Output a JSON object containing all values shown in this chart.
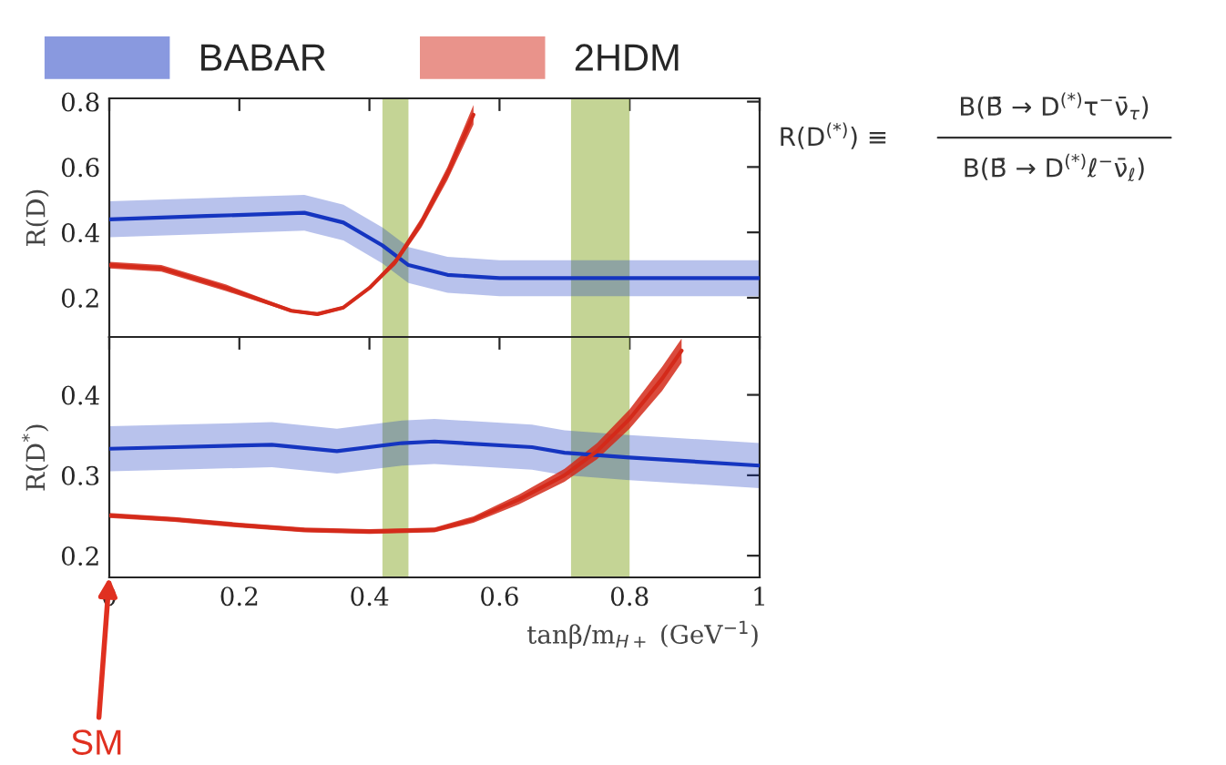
{
  "chart_data": [
    {
      "type": "line",
      "ylabel": "R(D)",
      "xlim": [
        0,
        1
      ],
      "xticks": [
        0,
        0.2,
        0.4,
        0.6,
        0.8,
        1
      ],
      "ylim": [
        0.08,
        0.81
      ],
      "yticks": [
        0.2,
        0.4,
        0.6,
        0.8
      ],
      "tick_labels": "y",
      "legend": "top",
      "grid": false,
      "bands": [
        {
          "axis": "x",
          "from": 0.42,
          "to": 0.46,
          "color": "#b5c97a"
        },
        {
          "axis": "x",
          "from": 0.71,
          "to": 0.8,
          "color": "#b5c97a"
        }
      ],
      "series": [
        {
          "name": "BABAR",
          "color": "#1535c0",
          "x": [
            0,
            0.15,
            0.3,
            0.36,
            0.42,
            0.46,
            0.52,
            0.6,
            0.8,
            1
          ],
          "values": [
            0.44,
            0.45,
            0.46,
            0.43,
            0.36,
            0.3,
            0.27,
            0.26,
            0.26,
            0.26
          ],
          "lower": [
            0.385,
            0.395,
            0.405,
            0.375,
            0.305,
            0.245,
            0.215,
            0.205,
            0.205,
            0.205
          ],
          "upper": [
            0.495,
            0.505,
            0.515,
            0.485,
            0.415,
            0.355,
            0.325,
            0.315,
            0.315,
            0.315
          ]
        },
        {
          "name": "2HDM",
          "color": "#d42a1a",
          "x": [
            0,
            0.08,
            0.18,
            0.28,
            0.32,
            0.36,
            0.4,
            0.44,
            0.48,
            0.52,
            0.56
          ],
          "values": [
            0.3,
            0.29,
            0.23,
            0.16,
            0.15,
            0.17,
            0.23,
            0.31,
            0.43,
            0.58,
            0.76
          ],
          "lower": [
            0.29,
            0.28,
            0.22,
            0.155,
            0.145,
            0.165,
            0.225,
            0.3,
            0.415,
            0.56,
            0.73
          ],
          "upper": [
            0.31,
            0.3,
            0.24,
            0.165,
            0.155,
            0.175,
            0.235,
            0.32,
            0.445,
            0.6,
            0.79
          ]
        }
      ],
      "annotations": [
        "R(D$^{(*)}$) ≡",
        "B(B̄ → D$^{(*)}$τ$^{−}$ν̄$_{τ}$)",
        "B(B̄ → D$^{(*)}$ℓ$^{−}$ν̄$_{ℓ}$)"
      ]
    },
    {
      "type": "line",
      "ylabel": "R(D$^{*}$)",
      "xlabel": "tanβ/m$_{H+}$ (GeV$^{−1}$)",
      "xlim": [
        0,
        1
      ],
      "xticks": [
        0,
        0.2,
        0.4,
        0.6,
        0.8,
        1
      ],
      "ylim": [
        0.173,
        0.472
      ],
      "yticks": [
        0.2,
        0.3,
        0.4
      ],
      "grid": false,
      "bands": [
        {
          "axis": "x",
          "from": 0.42,
          "to": 0.46,
          "color": "#b5c97a"
        },
        {
          "axis": "x",
          "from": 0.71,
          "to": 0.8,
          "color": "#b5c97a"
        }
      ],
      "series": [
        {
          "color": "#1535c0",
          "x": [
            0,
            0.1,
            0.25,
            0.35,
            0.45,
            0.5,
            0.65,
            0.7,
            0.8,
            1
          ],
          "values": [
            0.333,
            0.335,
            0.338,
            0.33,
            0.34,
            0.342,
            0.335,
            0.328,
            0.322,
            0.312
          ],
          "lower": [
            0.305,
            0.307,
            0.31,
            0.302,
            0.312,
            0.314,
            0.307,
            0.3,
            0.294,
            0.284
          ],
          "upper": [
            0.361,
            0.363,
            0.366,
            0.358,
            0.368,
            0.37,
            0.363,
            0.356,
            0.35,
            0.34
          ]
        },
        {
          "color": "#d42a1a",
          "x": [
            0,
            0.1,
            0.2,
            0.3,
            0.4,
            0.5,
            0.56,
            0.63,
            0.7,
            0.75,
            0.8,
            0.85,
            0.88
          ],
          "values": [
            0.25,
            0.245,
            0.238,
            0.232,
            0.23,
            0.232,
            0.245,
            0.27,
            0.3,
            0.33,
            0.37,
            0.42,
            0.455
          ],
          "lower": [
            0.247,
            0.242,
            0.235,
            0.229,
            0.227,
            0.229,
            0.241,
            0.264,
            0.292,
            0.32,
            0.358,
            0.405,
            0.44
          ],
          "upper": [
            0.253,
            0.248,
            0.241,
            0.235,
            0.233,
            0.235,
            0.249,
            0.276,
            0.308,
            0.34,
            0.382,
            0.435,
            0.47
          ]
        }
      ],
      "annotations": [
        "SM"
      ]
    }
  ]
}
